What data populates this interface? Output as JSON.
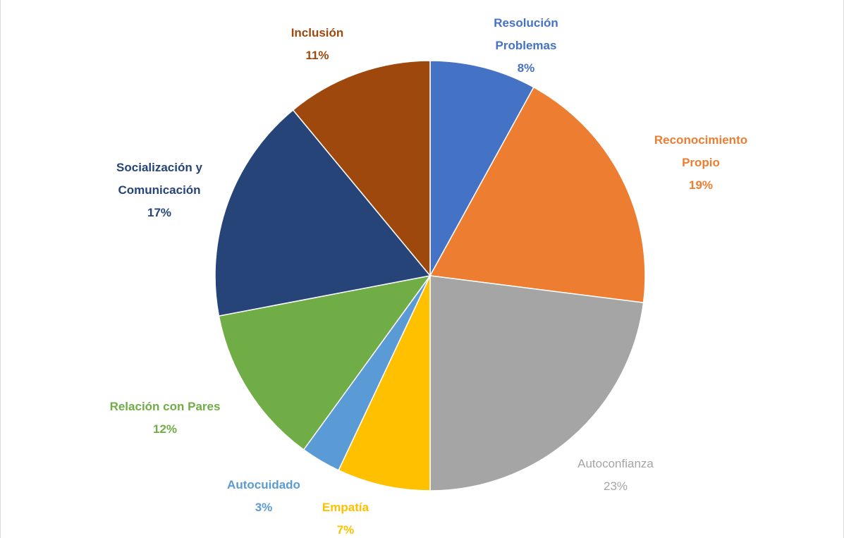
{
  "chart_data": {
    "type": "pie",
    "title": "",
    "slices": [
      {
        "label_lines": [
          "Resolución",
          "Problemas"
        ],
        "value": 8,
        "pct_label": "8%",
        "color": "#4472C4"
      },
      {
        "label_lines": [
          "Reconocimiento",
          "Propio"
        ],
        "value": 19,
        "pct_label": "19%",
        "color": "#ED7D31"
      },
      {
        "label_lines": [
          "Autoconfianza"
        ],
        "value": 23,
        "pct_label": "23%",
        "color": "#A5A5A5"
      },
      {
        "label_lines": [
          "Empatía"
        ],
        "value": 7,
        "pct_label": "7%",
        "color": "#FFC000"
      },
      {
        "label_lines": [
          "Autocuidado"
        ],
        "value": 3,
        "pct_label": "3%",
        "color": "#5B9BD5"
      },
      {
        "label_lines": [
          "Relación con Pares"
        ],
        "value": 12,
        "pct_label": "12%",
        "color": "#70AD47"
      },
      {
        "label_lines": [
          "Socialización  y",
          "Comunicación"
        ],
        "value": 17,
        "pct_label": "17%",
        "color": "#264478"
      },
      {
        "label_lines": [
          "Inclusión"
        ],
        "value": 11,
        "pct_label": "11%",
        "color": "#9E480E"
      }
    ],
    "start_angle_deg": 0,
    "direction": "clockwise",
    "data_labels": "outside",
    "legend": "none"
  }
}
